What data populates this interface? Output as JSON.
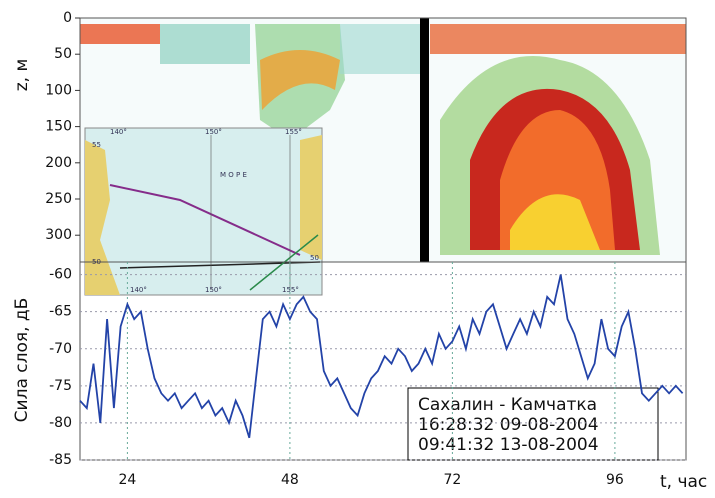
{
  "chart_data": [
    {
      "type": "echogram",
      "ylabel": "z, м",
      "ylim": [
        0,
        337
      ],
      "yticks": [
        0,
        50,
        100,
        150,
        200,
        250,
        300
      ]
    },
    {
      "type": "line",
      "ylabel": "Сила слоя, дБ",
      "xlabel": "t, час",
      "color": "#2343a8",
      "grid": true,
      "xlim": [
        17,
        106.5
      ],
      "xticks": [
        24,
        48,
        72,
        96
      ],
      "ylim": [
        -85,
        -58.3
      ],
      "yticks": [
        -85,
        -80,
        -75,
        -70,
        -65,
        -60
      ],
      "x": [
        17,
        18,
        19,
        20,
        21,
        22,
        23,
        24,
        25,
        26,
        27,
        28,
        29,
        30,
        31,
        32,
        33,
        34,
        35,
        36,
        37,
        38,
        39,
        40,
        41,
        42,
        43,
        44,
        45,
        46,
        47,
        48,
        49,
        50,
        51,
        52,
        53,
        54,
        55,
        56,
        57,
        58,
        59,
        60,
        61,
        62,
        63,
        64,
        65,
        66,
        67,
        68,
        69,
        70,
        71,
        72,
        73,
        74,
        75,
        76,
        77,
        78,
        79,
        80,
        81,
        82,
        83,
        84,
        85,
        86,
        87,
        88,
        89,
        90,
        91,
        92,
        93,
        94,
        95,
        96,
        97,
        98,
        99,
        100,
        101,
        102,
        103,
        104,
        105,
        106
      ],
      "values": [
        -77,
        -78,
        -72,
        -80,
        -66,
        -78,
        -67,
        -64,
        -66,
        -65,
        -70,
        -74,
        -76,
        -77,
        -76,
        -78,
        -77,
        -76,
        -78,
        -77,
        -79,
        -78,
        -80,
        -77,
        -79,
        -82,
        -74,
        -66,
        -65,
        -67,
        -64,
        -66,
        -64,
        -63,
        -65,
        -66,
        -73,
        -75,
        -74,
        -76,
        -78,
        -79,
        -76,
        -74,
        -73,
        -71,
        -72,
        -70,
        -71,
        -73,
        -72,
        -70,
        -72,
        -68,
        -70,
        -69,
        -67,
        -70,
        -66,
        -68,
        -65,
        -64,
        -67,
        -70,
        -68,
        -66,
        -68,
        -65,
        -67,
        -63,
        -64,
        -60,
        -66,
        -68,
        -71,
        -74,
        -72,
        -66,
        -70,
        -71,
        -67,
        -65,
        -70,
        -76,
        -77,
        -76,
        -75,
        -76,
        -75,
        -76
      ],
      "legend_lines": [
        "Сахалин - Камчатка",
        "16:28:32 09-08-2004",
        "09:41:32 13-08-2004"
      ]
    }
  ],
  "inset": {
    "labels": [
      "140°",
      "150°",
      "155°",
      "55",
      "50",
      "140°",
      "150°",
      "155°",
      "50",
      "М О Р Е"
    ]
  }
}
